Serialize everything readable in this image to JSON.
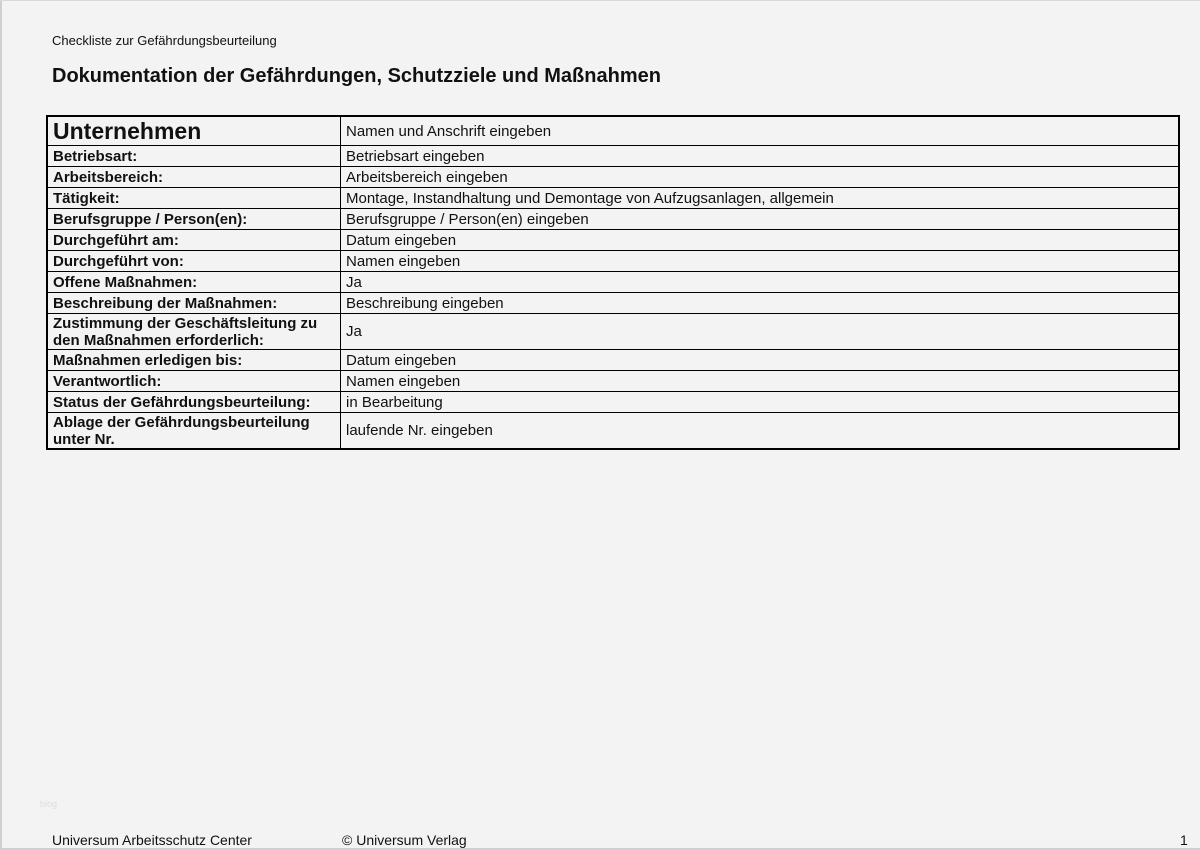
{
  "header": {
    "subtitle": "Checkliste zur Gefährdungsbeurteilung",
    "title": "Dokumentation der Gefährdungen, Schutzziele und Maßnahmen"
  },
  "rows": [
    {
      "label": "Unternehmen",
      "value": "Namen und Anschrift eingeben"
    },
    {
      "label": "Betriebsart:",
      "value": "Betriebsart eingeben"
    },
    {
      "label": "Arbeitsbereich:",
      "value": "Arbeitsbereich eingeben"
    },
    {
      "label": "Tätigkeit:",
      "value": "Montage, Instandhaltung und Demontage von Aufzugsanlagen, allgemein"
    },
    {
      "label": "Berufsgruppe / Person(en):",
      "value": "Berufsgruppe / Person(en) eingeben"
    },
    {
      "label": "Durchgeführt am:",
      "value": "Datum eingeben"
    },
    {
      "label": "Durchgeführt von:",
      "value": "Namen eingeben"
    },
    {
      "label": "Offene Maßnahmen:",
      "value": "Ja"
    },
    {
      "label": "Beschreibung der Maßnahmen:",
      "value": "Beschreibung eingeben"
    },
    {
      "label": "Zustimmung der Geschäftsleitung zu den Maßnahmen erforderlich:",
      "value": "Ja"
    },
    {
      "label": "Maßnahmen erledigen bis:",
      "value": "Datum eingeben"
    },
    {
      "label": "Verantwortlich:",
      "value": "Namen eingeben"
    },
    {
      "label": "Status der Gefährdungsbeurteilung:",
      "value": "in Bearbeitung"
    },
    {
      "label": "Ablage der Gefährdungsbeurteilung unter Nr.",
      "value": "laufende Nr. eingeben"
    }
  ],
  "watermark": "blog",
  "footer": {
    "left": "Universum Arbeitsschutz Center",
    "center": "© Universum Verlag",
    "page": "1"
  }
}
